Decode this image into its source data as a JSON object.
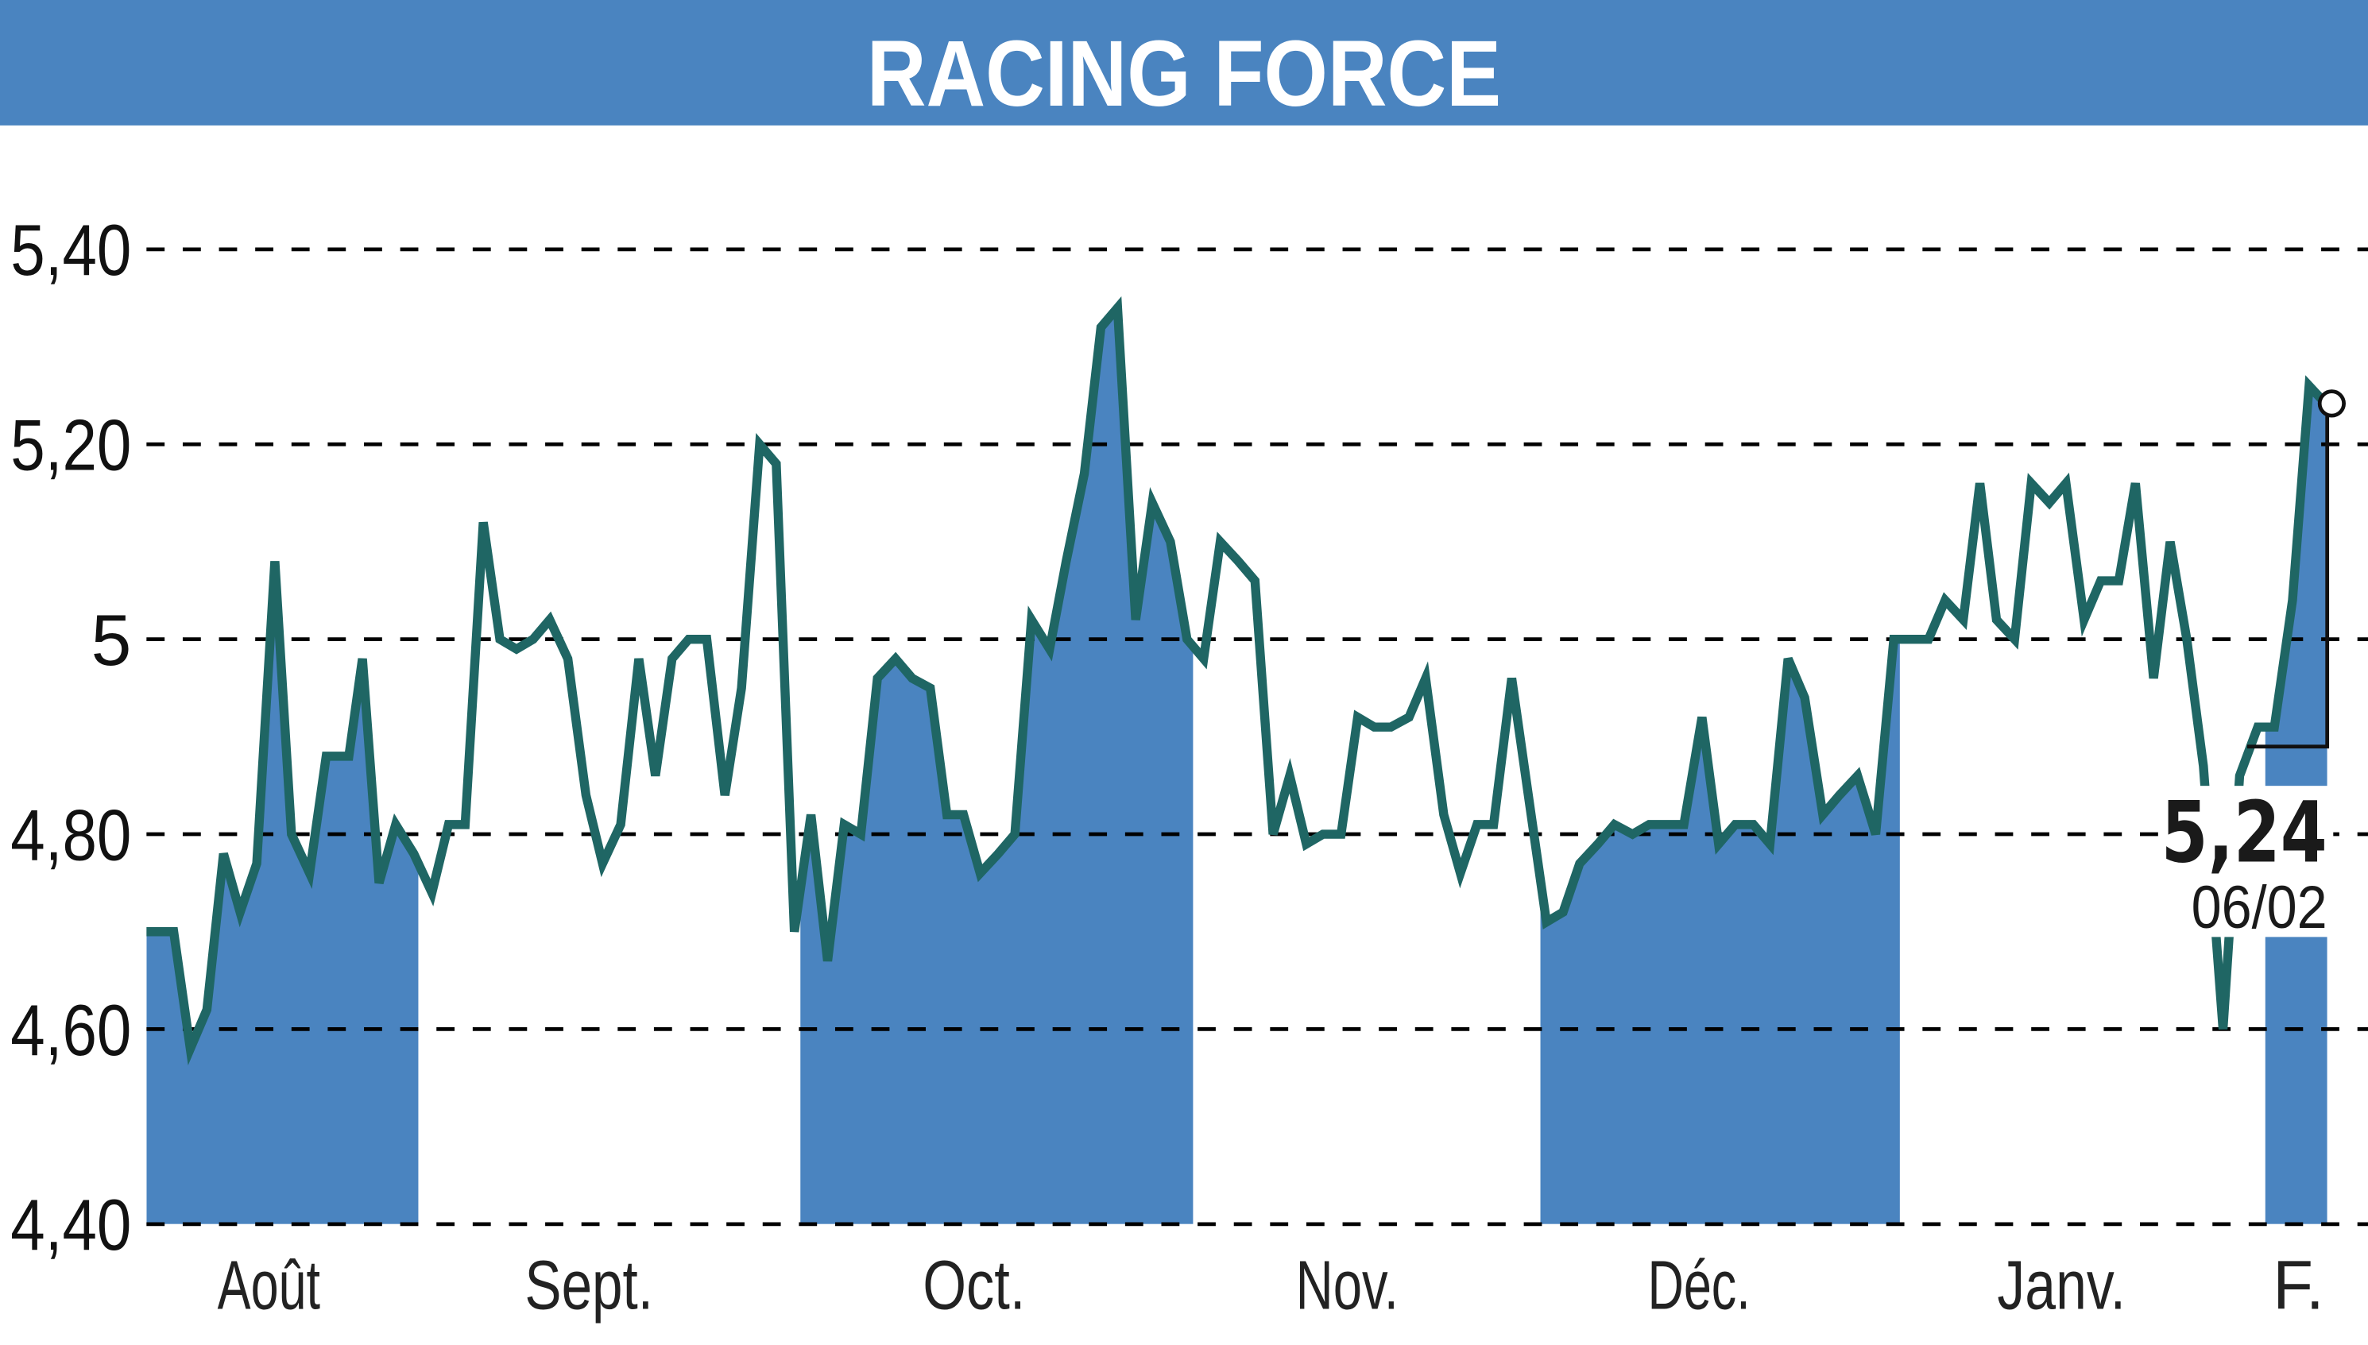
{
  "header": {
    "title": "RACING FORCE",
    "background_color": "#4a84c0",
    "text_color": "#ffffff"
  },
  "colors": {
    "line": "#1f6664",
    "fill": "#4a84c0",
    "grid": "#000000"
  },
  "y_axis": {
    "ticks": [
      {
        "label": "5,40",
        "value": 5.4
      },
      {
        "label": "5,20",
        "value": 5.2
      },
      {
        "label": "5",
        "value": 5.0
      },
      {
        "label": "4,80",
        "value": 4.8
      },
      {
        "label": "4,60",
        "value": 4.6
      },
      {
        "label": "4,40",
        "value": 4.4
      }
    ]
  },
  "x_axis": {
    "months": [
      {
        "label": "Août",
        "x": 178
      },
      {
        "label": "Sept.",
        "x": 390
      },
      {
        "label": "Oct.",
        "x": 645
      },
      {
        "label": "Nov.",
        "x": 892
      },
      {
        "label": "Déc.",
        "x": 1125
      },
      {
        "label": "Janv.",
        "x": 1365
      },
      {
        "label": "F.",
        "x": 1522
      }
    ]
  },
  "last_value": {
    "value": "5,24",
    "date": "06/02"
  },
  "chart_data": {
    "type": "line",
    "title": "RACING FORCE",
    "xlabel": "",
    "ylabel": "",
    "ylim": [
      4.4,
      5.4
    ],
    "grid": true,
    "legend": null,
    "categories": [
      "Août",
      "Sept.",
      "Oct.",
      "Nov.",
      "Déc.",
      "Janv.",
      "F."
    ],
    "shaded_months": [
      "Août",
      "Oct.",
      "Déc.",
      "F."
    ],
    "annotation": {
      "value": 5.24,
      "label": "5,24",
      "date": "06/02"
    },
    "series": [
      {
        "name": "Racing Force",
        "points": [
          {
            "x": 97,
            "v": 4.7
          },
          {
            "x": 115,
            "v": 4.7
          },
          {
            "x": 126,
            "v": 4.58
          },
          {
            "x": 137,
            "v": 4.62
          },
          {
            "x": 148,
            "v": 4.78
          },
          {
            "x": 159,
            "v": 4.72
          },
          {
            "x": 170,
            "v": 4.77
          },
          {
            "x": 182,
            "v": 5.08
          },
          {
            "x": 193,
            "v": 4.8
          },
          {
            "x": 205,
            "v": 4.76
          },
          {
            "x": 216,
            "v": 4.88
          },
          {
            "x": 231,
            "v": 4.88
          },
          {
            "x": 240,
            "v": 4.98
          },
          {
            "x": 251,
            "v": 4.75
          },
          {
            "x": 262,
            "v": 4.81
          },
          {
            "x": 274,
            "v": 4.78
          },
          {
            "x": 286,
            "v": 4.74
          },
          {
            "x": 297,
            "v": 4.81
          },
          {
            "x": 308,
            "v": 4.81
          },
          {
            "x": 320,
            "v": 5.12
          },
          {
            "x": 331,
            "v": 5.0
          },
          {
            "x": 342,
            "v": 4.99
          },
          {
            "x": 353,
            "v": 5.0
          },
          {
            "x": 364,
            "v": 5.02
          },
          {
            "x": 376,
            "v": 4.98
          },
          {
            "x": 388,
            "v": 4.84
          },
          {
            "x": 399,
            "v": 4.77
          },
          {
            "x": 411,
            "v": 4.81
          },
          {
            "x": 423,
            "v": 4.98
          },
          {
            "x": 434,
            "v": 4.86
          },
          {
            "x": 445,
            "v": 4.98
          },
          {
            "x": 456,
            "v": 5.0
          },
          {
            "x": 468,
            "v": 5.0
          },
          {
            "x": 480,
            "v": 4.84
          },
          {
            "x": 491,
            "v": 4.95
          },
          {
            "x": 503,
            "v": 5.2
          },
          {
            "x": 514,
            "v": 5.18
          },
          {
            "x": 526,
            "v": 4.7
          },
          {
            "x": 537,
            "v": 4.82
          },
          {
            "x": 548,
            "v": 4.67
          },
          {
            "x": 559,
            "v": 4.81
          },
          {
            "x": 570,
            "v": 4.8
          },
          {
            "x": 581,
            "v": 4.96
          },
          {
            "x": 593,
            "v": 4.98
          },
          {
            "x": 604,
            "v": 4.96
          },
          {
            "x": 616,
            "v": 4.95
          },
          {
            "x": 627,
            "v": 4.82
          },
          {
            "x": 638,
            "v": 4.82
          },
          {
            "x": 649,
            "v": 4.76
          },
          {
            "x": 661,
            "v": 4.78
          },
          {
            "x": 672,
            "v": 4.8
          },
          {
            "x": 683,
            "v": 5.02
          },
          {
            "x": 695,
            "v": 4.99
          },
          {
            "x": 706,
            "v": 5.08
          },
          {
            "x": 718,
            "v": 5.17
          },
          {
            "x": 729,
            "v": 5.32
          },
          {
            "x": 740,
            "v": 5.34
          },
          {
            "x": 752,
            "v": 5.02
          },
          {
            "x": 763,
            "v": 5.14
          },
          {
            "x": 775,
            "v": 5.1
          },
          {
            "x": 786,
            "v": 5.0
          },
          {
            "x": 797,
            "v": 4.98
          },
          {
            "x": 808,
            "v": 5.1
          },
          {
            "x": 820,
            "v": 5.08
          },
          {
            "x": 831,
            "v": 5.06
          },
          {
            "x": 843,
            "v": 4.8
          },
          {
            "x": 854,
            "v": 4.86
          },
          {
            "x": 865,
            "v": 4.79
          },
          {
            "x": 876,
            "v": 4.8
          },
          {
            "x": 888,
            "v": 4.8
          },
          {
            "x": 899,
            "v": 4.92
          },
          {
            "x": 910,
            "v": 4.91
          },
          {
            "x": 921,
            "v": 4.91
          },
          {
            "x": 933,
            "v": 4.92
          },
          {
            "x": 944,
            "v": 4.96
          },
          {
            "x": 956,
            "v": 4.82
          },
          {
            "x": 967,
            "v": 4.76
          },
          {
            "x": 978,
            "v": 4.81
          },
          {
            "x": 989,
            "v": 4.81
          },
          {
            "x": 1001,
            "v": 4.96
          },
          {
            "x": 1012,
            "v": 4.84
          },
          {
            "x": 1024,
            "v": 4.71
          },
          {
            "x": 1035,
            "v": 4.72
          },
          {
            "x": 1046,
            "v": 4.77
          },
          {
            "x": 1058,
            "v": 4.79
          },
          {
            "x": 1069,
            "v": 4.81
          },
          {
            "x": 1081,
            "v": 4.8
          },
          {
            "x": 1092,
            "v": 4.81
          },
          {
            "x": 1103,
            "v": 4.81
          },
          {
            "x": 1115,
            "v": 4.81
          },
          {
            "x": 1127,
            "v": 4.92
          },
          {
            "x": 1138,
            "v": 4.79
          },
          {
            "x": 1149,
            "v": 4.81
          },
          {
            "x": 1161,
            "v": 4.81
          },
          {
            "x": 1172,
            "v": 4.79
          },
          {
            "x": 1184,
            "v": 4.98
          },
          {
            "x": 1195,
            "v": 4.94
          },
          {
            "x": 1207,
            "v": 4.82
          },
          {
            "x": 1218,
            "v": 4.84
          },
          {
            "x": 1230,
            "v": 4.86
          },
          {
            "x": 1242,
            "v": 4.8
          },
          {
            "x": 1254,
            "v": 5.0
          },
          {
            "x": 1265,
            "v": 5.0
          },
          {
            "x": 1277,
            "v": 5.0
          },
          {
            "x": 1288,
            "v": 5.04
          },
          {
            "x": 1300,
            "v": 5.02
          },
          {
            "x": 1311,
            "v": 5.16
          },
          {
            "x": 1322,
            "v": 5.02
          },
          {
            "x": 1334,
            "v": 5.0
          },
          {
            "x": 1345,
            "v": 5.16
          },
          {
            "x": 1357,
            "v": 5.14
          },
          {
            "x": 1368,
            "v": 5.16
          },
          {
            "x": 1380,
            "v": 5.02
          },
          {
            "x": 1391,
            "v": 5.06
          },
          {
            "x": 1403,
            "v": 5.06
          },
          {
            "x": 1414,
            "v": 5.16
          },
          {
            "x": 1426,
            "v": 4.96
          },
          {
            "x": 1437,
            "v": 5.1
          },
          {
            "x": 1448,
            "v": 5.0
          },
          {
            "x": 1459,
            "v": 4.87
          },
          {
            "x": 1472,
            "v": 4.6
          },
          {
            "x": 1483,
            "v": 4.86
          },
          {
            "x": 1495,
            "v": 4.91
          },
          {
            "x": 1506,
            "v": 4.91
          },
          {
            "x": 1518,
            "v": 5.04
          },
          {
            "x": 1529,
            "v": 5.26
          },
          {
            "x": 1541,
            "v": 5.24
          }
        ]
      }
    ],
    "shading_bands_x": [
      [
        97,
        277
      ],
      [
        530,
        790
      ],
      [
        1020,
        1258
      ],
      [
        1500,
        1545
      ]
    ]
  }
}
